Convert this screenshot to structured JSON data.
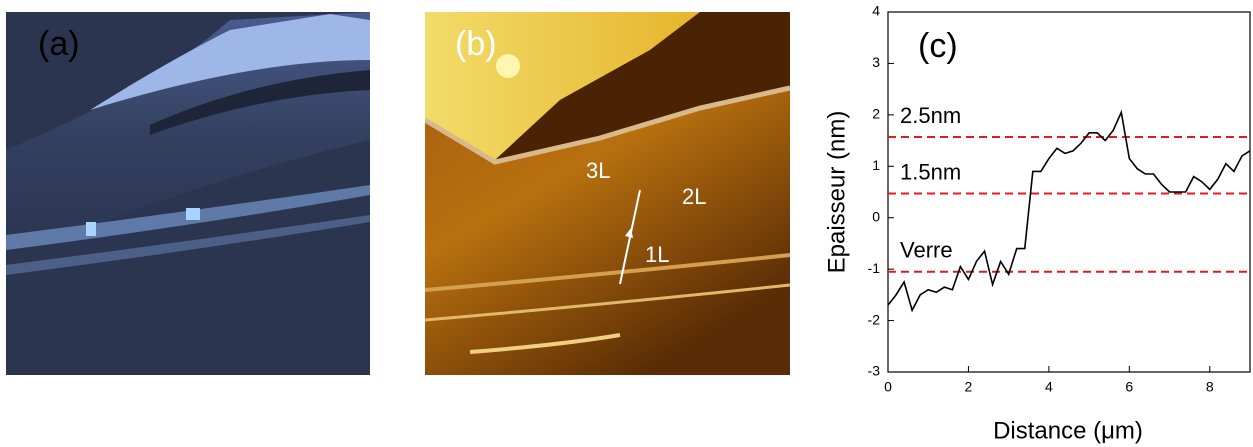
{
  "panels": [
    "(a)",
    "(b)",
    "(c)"
  ],
  "image_b_labels": [
    "3L",
    "2L",
    "1L"
  ],
  "chart_data": {
    "type": "line",
    "x_label": "Distance (μm)",
    "y_label": "Epaisseur (nm)",
    "x": [
      0,
      0.2,
      0.4,
      0.6,
      0.8,
      1.0,
      1.2,
      1.4,
      1.6,
      1.8,
      2.0,
      2.2,
      2.4,
      2.6,
      2.8,
      3.0,
      3.2,
      3.4,
      3.6,
      3.8,
      4.0,
      4.2,
      4.4,
      4.6,
      4.8,
      5.0,
      5.2,
      5.4,
      5.6,
      5.8,
      6.0,
      6.2,
      6.4,
      6.6,
      6.8,
      7.0,
      7.2,
      7.4,
      7.6,
      7.8,
      8.0,
      8.2,
      8.4,
      8.6,
      8.8,
      9.0
    ],
    "values": [
      -1.7,
      -1.5,
      -1.25,
      -1.8,
      -1.5,
      -1.4,
      -1.45,
      -1.35,
      -1.4,
      -0.95,
      -1.2,
      -0.85,
      -0.65,
      -1.3,
      -0.85,
      -1.1,
      -0.6,
      -0.6,
      0.9,
      0.9,
      1.15,
      1.35,
      1.25,
      1.3,
      1.45,
      1.65,
      1.65,
      1.5,
      1.7,
      2.05,
      1.15,
      0.95,
      0.85,
      0.85,
      0.65,
      0.5,
      0.5,
      0.5,
      0.8,
      0.7,
      0.55,
      0.75,
      1.05,
      0.9,
      1.2,
      1.3
    ],
    "color": "#000000",
    "xlim": [
      0,
      9
    ],
    "xticks": [
      0,
      2,
      4,
      6,
      8
    ],
    "ylim": [
      -3,
      4
    ],
    "yticks": [
      -3,
      -2,
      -1,
      0,
      1,
      2,
      3,
      4
    ],
    "reference_lines": [
      {
        "label": "2.5nm",
        "value": 1.57
      },
      {
        "label": "1.5nm",
        "value": 0.47
      },
      {
        "label": "Verre",
        "value": -1.05
      }
    ],
    "reference_color": "#e41a1c"
  }
}
